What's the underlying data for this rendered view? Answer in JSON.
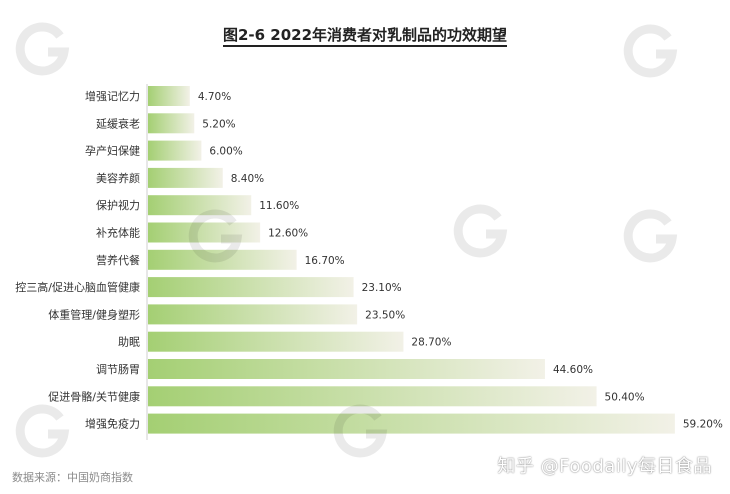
{
  "title": "图2-6 2022年消费者对乳制品的功效期望",
  "source": "数据来源：中国奶商指数",
  "footer_brand": "知乎 @Foodaily每日食品",
  "colors": {
    "bar_start": "#a4cf73",
    "bar_end": "#f2f1e7",
    "label_text": "#333333",
    "value_text": "#333333"
  },
  "chart_data": {
    "type": "bar",
    "orientation": "horizontal",
    "title": "图2-6 2022年消费者对乳制品的功效期望",
    "xlabel": "",
    "ylabel": "",
    "value_unit": "%",
    "categories": [
      "增强记忆力",
      "延缓衰老",
      "孕产妇保健",
      "美容养颜",
      "保护视力",
      "补充体能",
      "营养代餐",
      "控三高/促进心脑血管健康",
      "体重管理/健身塑形",
      "助眠",
      "调节肠胃",
      "促进骨骼/关节健康",
      "增强免疫力"
    ],
    "values": [
      4.7,
      5.2,
      6.0,
      8.4,
      11.6,
      12.6,
      16.7,
      23.1,
      23.5,
      28.7,
      44.6,
      50.4,
      59.2
    ],
    "value_labels": [
      "4.70%",
      "5.20%",
      "6.00%",
      "8.40%",
      "11.60%",
      "12.60%",
      "16.70%",
      "23.10%",
      "23.50%",
      "28.70%",
      "44.60%",
      "50.40%",
      "59.20%"
    ],
    "xlim": [
      0,
      59.2
    ],
    "grid": false,
    "legend": "none"
  }
}
